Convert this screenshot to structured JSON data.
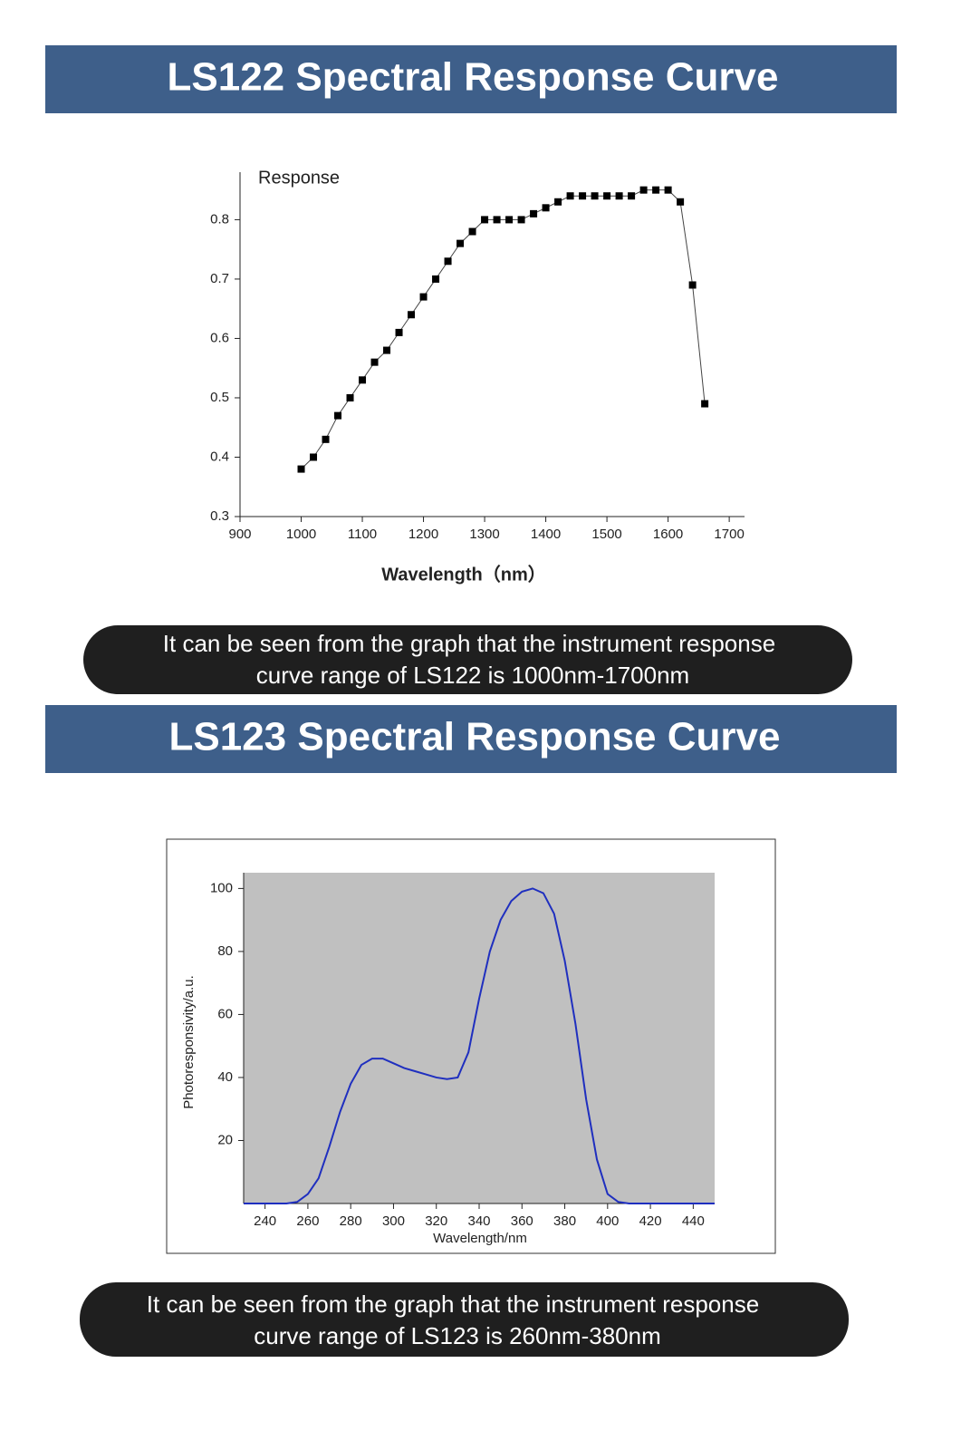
{
  "chart_data": [
    {
      "type": "scatter",
      "title": "LS122 Spectral Response Curve",
      "caption": [
        "It can be seen from the graph that the instrument response",
        "curve range of LS122 is 1000nm-1700nm"
      ],
      "x_label": "Wavelength（nm）",
      "y_label": "Response",
      "color": "#000000",
      "x": [
        1000,
        1020,
        1040,
        1060,
        1080,
        1100,
        1120,
        1140,
        1160,
        1180,
        1200,
        1220,
        1240,
        1260,
        1280,
        1300,
        1320,
        1340,
        1360,
        1380,
        1400,
        1420,
        1440,
        1460,
        1480,
        1500,
        1520,
        1540,
        1560,
        1580,
        1600,
        1620,
        1640,
        1660
      ],
      "values": [
        0.38,
        0.4,
        0.43,
        0.47,
        0.5,
        0.53,
        0.56,
        0.58,
        0.61,
        0.64,
        0.67,
        0.7,
        0.73,
        0.76,
        0.78,
        0.8,
        0.8,
        0.8,
        0.8,
        0.81,
        0.82,
        0.83,
        0.84,
        0.84,
        0.84,
        0.84,
        0.84,
        0.84,
        0.85,
        0.85,
        0.85,
        0.83,
        0.69,
        0.49
      ],
      "xlim": [
        900,
        1725
      ],
      "ylim": [
        0.3,
        0.88
      ],
      "xticks": [
        900,
        1000,
        1100,
        1200,
        1300,
        1400,
        1500,
        1600,
        1700
      ],
      "yticks": [
        0.3,
        0.4,
        0.5,
        0.6,
        0.7,
        0.8
      ]
    },
    {
      "type": "line",
      "title": "LS123 Spectral Response Curve",
      "caption": [
        "It can be seen from the graph that the instrument response",
        "curve range of LS123 is 260nm-380nm"
      ],
      "x_label": "Wavelength/nm",
      "y_label": "Photoresponsivity/a.u.",
      "color": "#1f2fbf",
      "plot_background": "#c0c0c0",
      "x": [
        230,
        240,
        250,
        255,
        260,
        265,
        270,
        275,
        280,
        285,
        290,
        295,
        300,
        305,
        310,
        315,
        320,
        325,
        330,
        335,
        340,
        345,
        350,
        355,
        360,
        365,
        370,
        375,
        380,
        385,
        390,
        395,
        400,
        405,
        410,
        420,
        440,
        450
      ],
      "values": [
        0,
        0,
        0,
        0.5,
        3,
        8,
        18,
        29,
        38,
        44,
        46,
        46,
        44.5,
        43,
        42,
        41,
        40,
        39.5,
        40,
        48,
        65,
        80,
        90,
        96,
        99,
        100,
        98.5,
        92,
        77,
        57,
        33,
        14,
        3,
        0.5,
        0,
        0,
        0,
        0
      ],
      "xlim": [
        230,
        450
      ],
      "ylim": [
        0,
        105
      ],
      "xticks": [
        240,
        260,
        280,
        300,
        320,
        340,
        360,
        380,
        400,
        420,
        440
      ],
      "yticks": [
        20,
        40,
        60,
        80,
        100
      ]
    }
  ]
}
